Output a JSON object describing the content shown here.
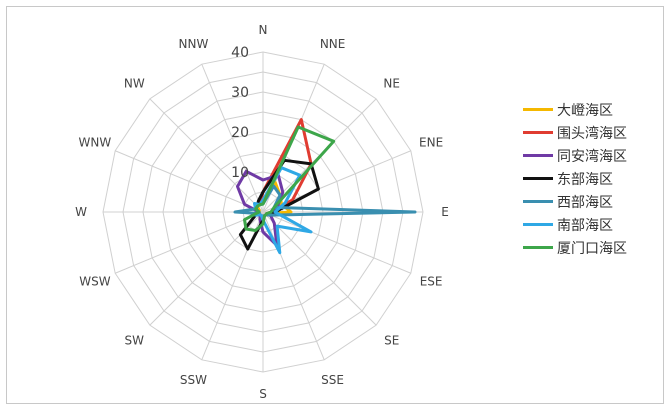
{
  "chart_data": {
    "type": "radar",
    "directions": [
      "N",
      "NNE",
      "NE",
      "ENE",
      "E",
      "ESE",
      "SE",
      "SSE",
      "S",
      "SSW",
      "SW",
      "WSW",
      "W",
      "WNW",
      "NW",
      "NNW"
    ],
    "radial_ticks": [
      "10",
      "20",
      "30",
      "40"
    ],
    "rmax": 40,
    "grid": true,
    "legend_position": "right",
    "series": [
      {
        "name": "大嶝海区",
        "color": "#F5B800",
        "values": [
          3,
          8,
          6,
          5,
          7,
          1,
          1,
          1,
          2,
          2,
          1,
          1,
          1,
          1,
          2,
          2
        ]
      },
      {
        "name": "围头湾海区",
        "color": "#E03C31",
        "values": [
          5,
          25,
          17,
          8,
          2,
          1,
          1,
          1,
          2,
          1,
          1,
          1,
          1,
          2,
          2,
          2
        ]
      },
      {
        "name": "同安湾海区",
        "color": "#6F3AA5",
        "values": [
          8,
          10,
          7,
          4,
          2,
          2,
          4,
          9,
          5,
          2,
          1,
          1,
          1,
          5,
          9,
          11
        ]
      },
      {
        "name": "东部海区",
        "color": "#111111",
        "values": [
          5,
          14,
          17,
          15,
          3,
          2,
          1,
          1,
          2,
          10,
          8,
          2,
          1,
          2,
          2,
          3
        ]
      },
      {
        "name": "西部海区",
        "color": "#3A8FB0",
        "values": [
          2,
          7,
          6,
          3,
          38,
          2,
          1,
          1,
          1,
          1,
          1,
          1,
          7,
          2,
          2,
          2
        ]
      },
      {
        "name": "南部海区",
        "color": "#2FA8E5",
        "values": [
          3,
          12,
          13,
          6,
          3,
          13,
          5,
          11,
          2,
          1,
          1,
          2,
          1,
          2,
          3,
          2
        ]
      },
      {
        "name": "厦门口海区",
        "color": "#3DA64A",
        "values": [
          2,
          23,
          25,
          3,
          2,
          1,
          1,
          1,
          3,
          5,
          6,
          5,
          1,
          2,
          2,
          2
        ]
      }
    ]
  }
}
